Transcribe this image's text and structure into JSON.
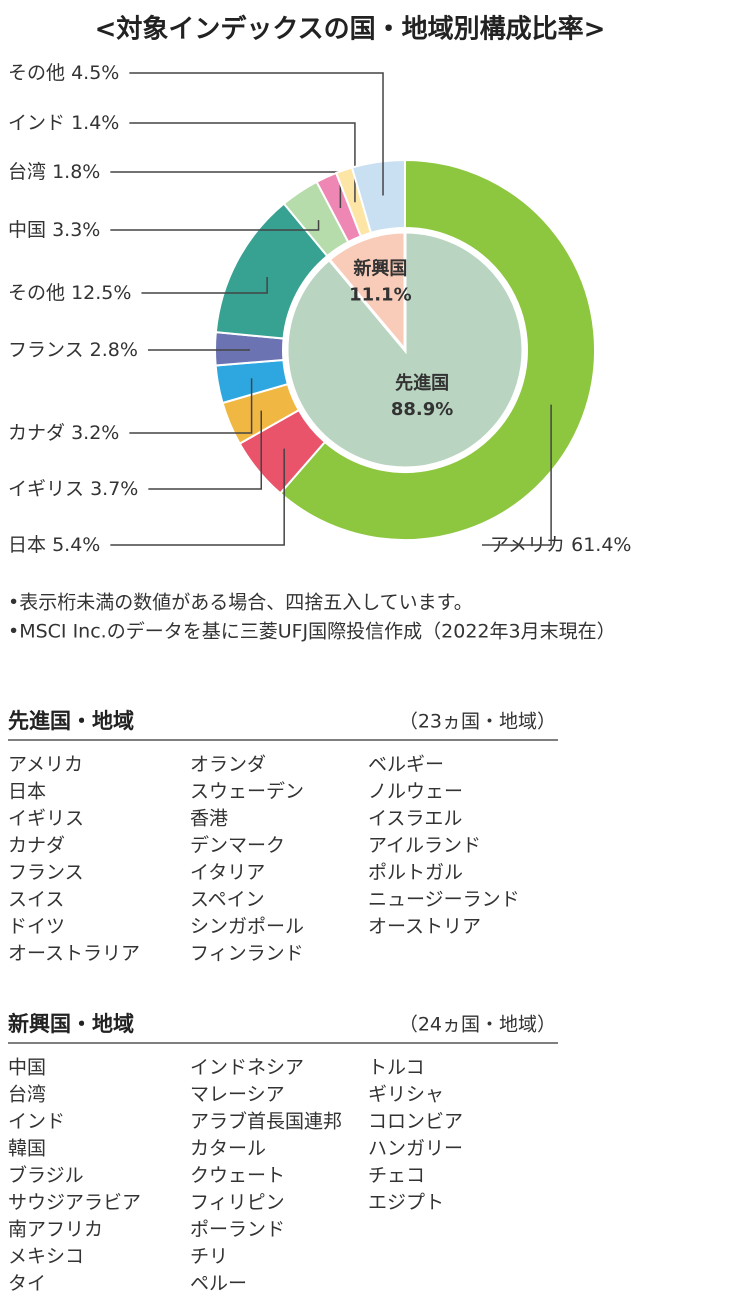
{
  "chart_data": {
    "type": "donut",
    "title": "<対象インデックスの国・地域別構成比率>",
    "inner": {
      "categories": [
        "先進国",
        "新興国"
      ],
      "values": [
        88.9,
        11.1
      ],
      "value_labels": [
        "88.9%",
        "11.1%"
      ],
      "colors": [
        "#b9d5c1",
        "#f9ccb9"
      ]
    },
    "outer": {
      "categories": [
        "アメリカ",
        "日本",
        "イギリス",
        "カナダ",
        "フランス",
        "その他",
        "中国",
        "台湾",
        "インド",
        "その他"
      ],
      "values": [
        61.4,
        5.4,
        3.7,
        3.2,
        2.8,
        12.5,
        3.3,
        1.8,
        1.4,
        4.5
      ],
      "value_labels": [
        "61.4%",
        "5.4%",
        "3.7%",
        "3.2%",
        "2.8%",
        "12.5%",
        "3.3%",
        "1.8%",
        "1.4%",
        "4.5%"
      ],
      "colors": [
        "#8dc63f",
        "#e9546b",
        "#f0b843",
        "#2ea7e0",
        "#6c73b2",
        "#37a192",
        "#b5dcaa",
        "#ee87b4",
        "#fde5a6",
        "#c9e0f3"
      ]
    }
  },
  "notes": [
    "•表示桁未満の数値がある場合、四捨五入しています。",
    "•MSCI Inc.のデータを基に三菱UFJ国際投信作成（2022年3月末現在）"
  ],
  "lists": [
    {
      "title": "先進国・地域",
      "count": "（23ヵ国・地域）",
      "columns": [
        [
          "アメリカ",
          "日本",
          "イギリス",
          "カナダ",
          "フランス",
          "スイス",
          "ドイツ",
          "オーストラリア"
        ],
        [
          "オランダ",
          "スウェーデン",
          "香港",
          "デンマーク",
          "イタリア",
          "スペイン",
          "シンガポール",
          "フィンランド"
        ],
        [
          "ベルギー",
          "ノルウェー",
          "イスラエル",
          "アイルランド",
          "ポルトガル",
          "ニュージーランド",
          "オーストリア"
        ]
      ]
    },
    {
      "title": "新興国・地域",
      "count": "（24ヵ国・地域）",
      "columns": [
        [
          "中国",
          "台湾",
          "インド",
          "韓国",
          "ブラジル",
          "サウジアラビア",
          "南アフリカ",
          "メキシコ",
          "タイ"
        ],
        [
          "インドネシア",
          "マレーシア",
          "アラブ首長国連邦",
          "カタール",
          "クウェート",
          "フィリピン",
          "ポーランド",
          "チリ",
          "ペルー"
        ],
        [
          "トルコ",
          "ギリシャ",
          "コロンビア",
          "ハンガリー",
          "チェコ",
          "エジプト"
        ]
      ]
    }
  ]
}
